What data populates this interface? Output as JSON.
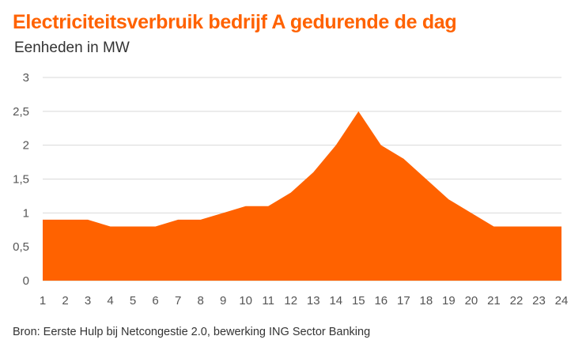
{
  "chart_data": {
    "type": "area",
    "title": "Electriciteitsverbruik bedrijf A gedurende de dag",
    "subtitle": "Eenheden in MW",
    "source": "Bron: Eerste Hulp bij Netcongestie 2.0, bewerking ING Sector Banking",
    "x": [
      1,
      2,
      3,
      4,
      5,
      6,
      7,
      8,
      9,
      10,
      11,
      12,
      13,
      14,
      15,
      16,
      17,
      18,
      19,
      20,
      21,
      22,
      23,
      24
    ],
    "series": [
      {
        "values": [
          0.9,
          0.9,
          0.9,
          0.8,
          0.8,
          0.8,
          0.9,
          0.9,
          1.0,
          1.1,
          1.1,
          1.3,
          1.6,
          2.0,
          2.5,
          2.0,
          1.8,
          1.5,
          1.2,
          1.0,
          0.8,
          0.8,
          0.8,
          0.8
        ]
      }
    ],
    "y_ticks": [
      "0",
      "0,5",
      "1",
      "1,5",
      "2",
      "2,5",
      "3"
    ],
    "x_ticks": [
      "1",
      "2",
      "3",
      "4",
      "5",
      "6",
      "7",
      "8",
      "9",
      "10",
      "11",
      "12",
      "13",
      "14",
      "15",
      "16",
      "17",
      "18",
      "19",
      "20",
      "21",
      "22",
      "23",
      "24"
    ],
    "ylim": [
      0,
      3
    ],
    "grid": true,
    "colors": {
      "fill": "#FF6200",
      "title": "#FF6200",
      "grid": "#D9D9D9",
      "text": "#333333"
    }
  }
}
